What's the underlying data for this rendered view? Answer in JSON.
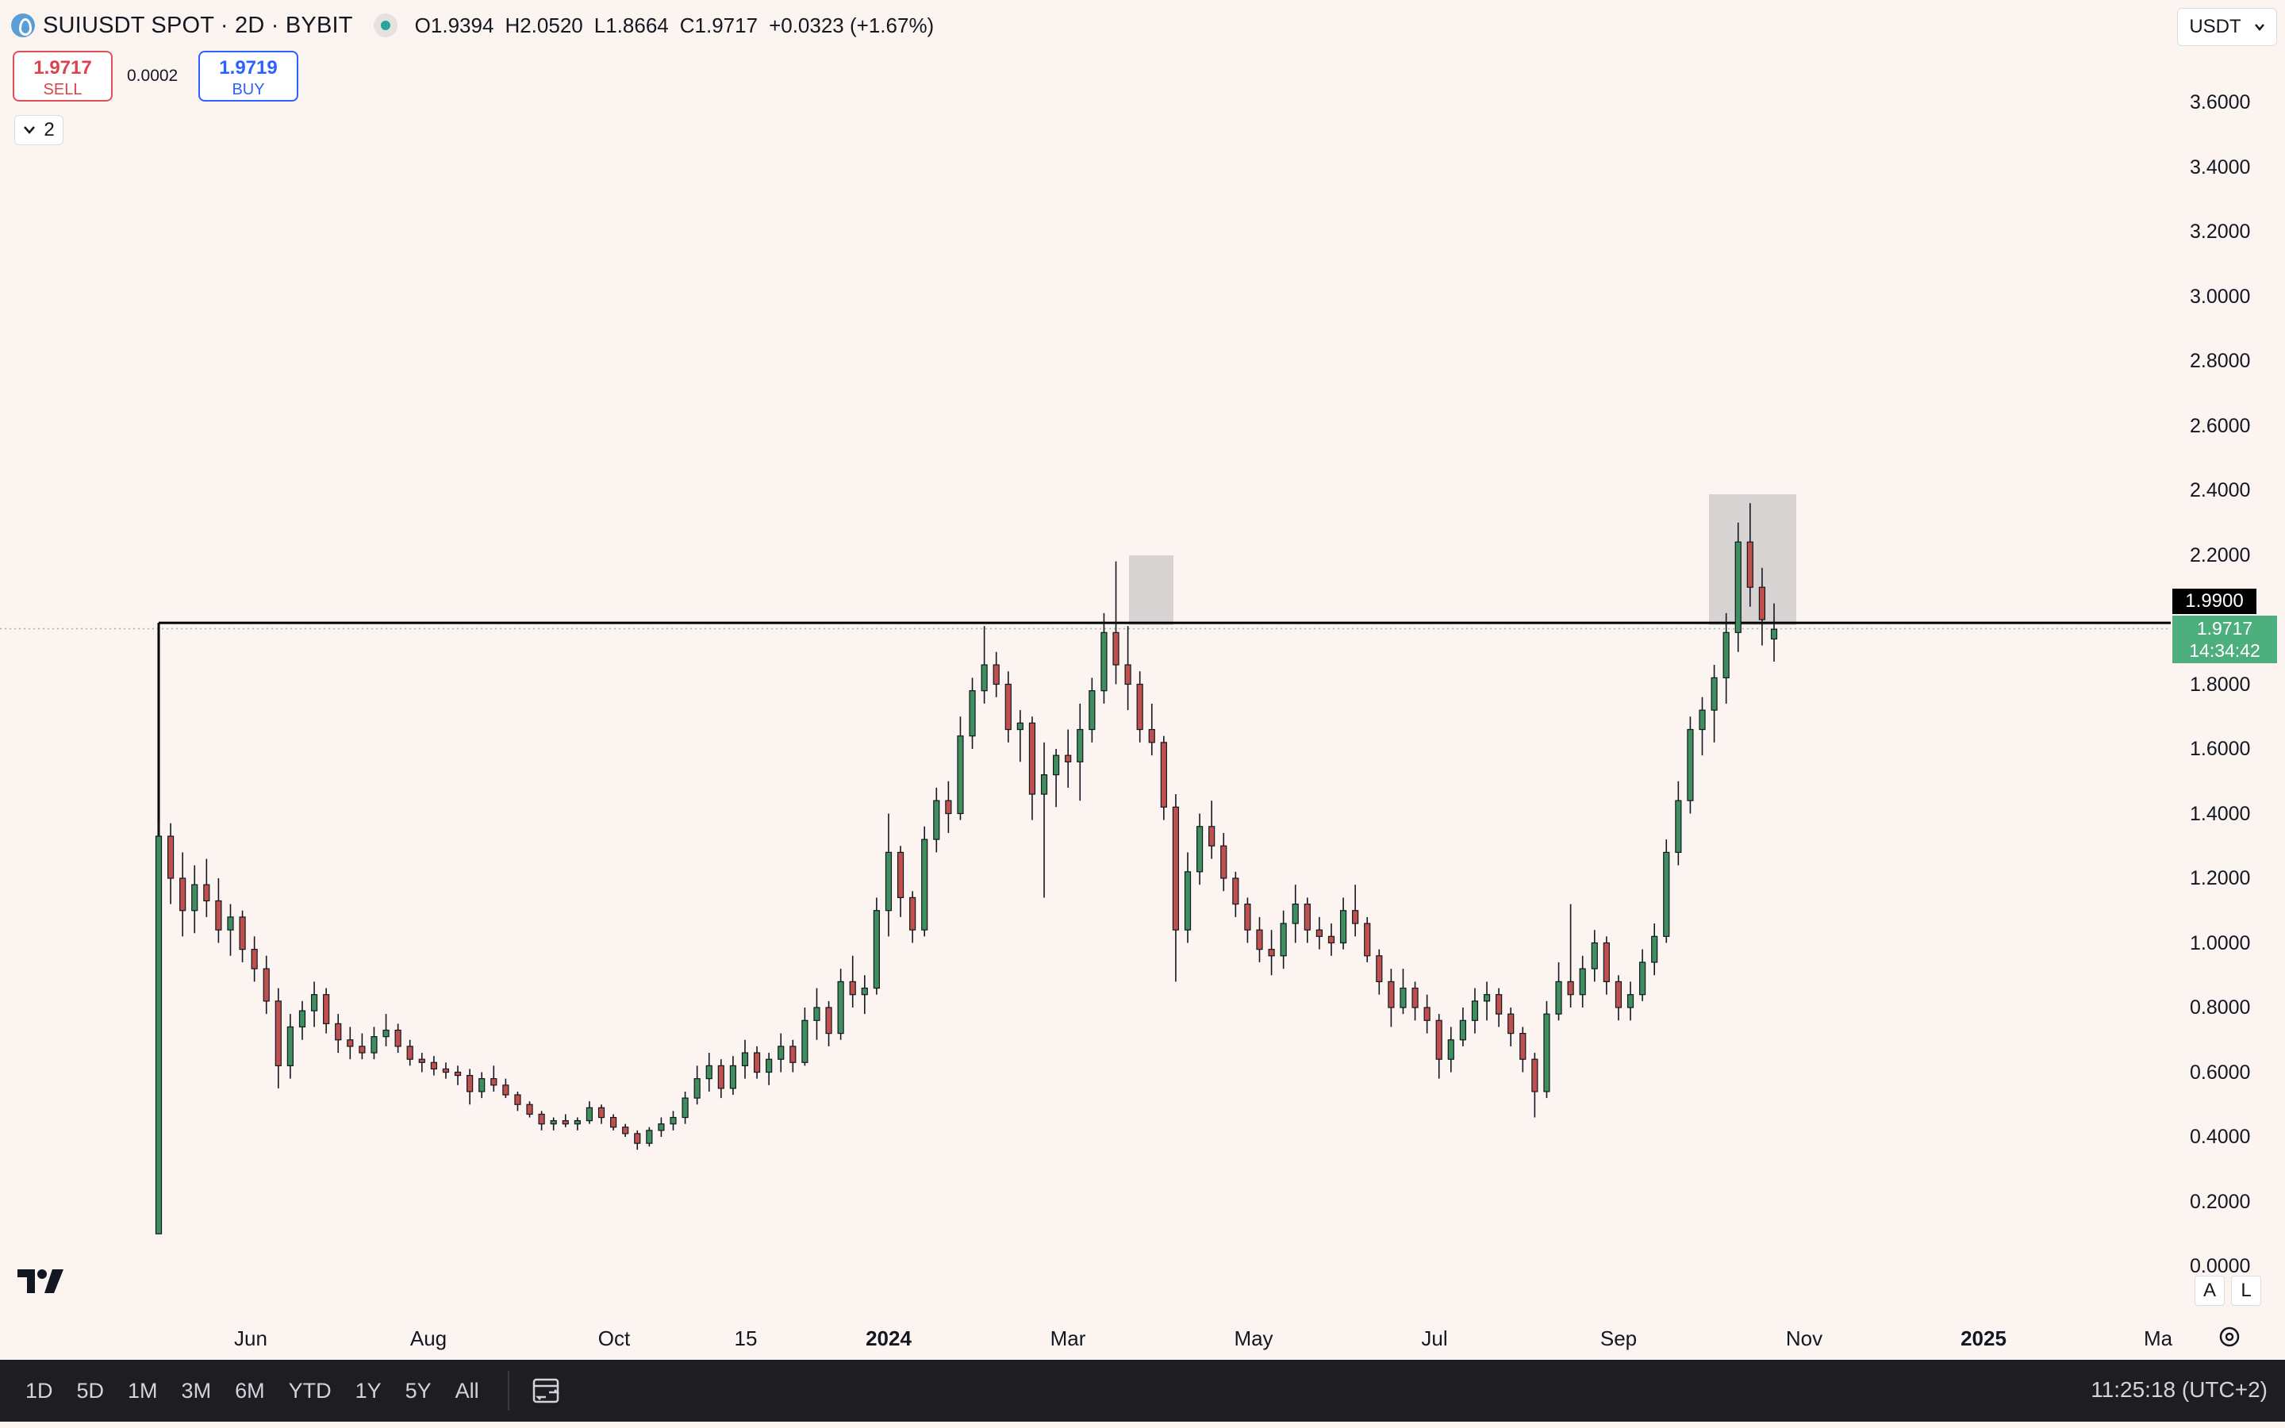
{
  "header": {
    "symbol": "SUIUSDT SPOT · 2D · BYBIT",
    "ohlc": {
      "open_label": "O",
      "open": "1.9394",
      "high_label": "H",
      "high": "2.0520",
      "low_label": "L",
      "low": "1.8664",
      "close_label": "C",
      "close": "1.9717",
      "change": "+0.0323 (+1.67%)"
    }
  },
  "trade": {
    "sell_price": "1.9717",
    "sell_label": "SELL",
    "spread": "0.0002",
    "buy_price": "1.9719",
    "buy_label": "BUY"
  },
  "indicators_toggle": "2",
  "currency": "USDT",
  "price_axis": {
    "ticks": [
      "3.6000",
      "3.4000",
      "3.2000",
      "3.0000",
      "2.8000",
      "2.6000",
      "2.4000",
      "2.2000",
      "1.8000",
      "1.6000",
      "1.4000",
      "1.2000",
      "1.0000",
      "0.8000",
      "0.6000",
      "0.4000",
      "0.2000",
      "0.0000"
    ],
    "level_tag": "1.9900",
    "last_price": "1.9717",
    "countdown": "14:34:42"
  },
  "time_axis": {
    "labels": [
      {
        "text": "Jun",
        "bold": false
      },
      {
        "text": "Aug",
        "bold": false
      },
      {
        "text": "Oct",
        "bold": false
      },
      {
        "text": "15",
        "bold": false
      },
      {
        "text": "2024",
        "bold": true
      },
      {
        "text": "Mar",
        "bold": false
      },
      {
        "text": "May",
        "bold": false
      },
      {
        "text": "Jul",
        "bold": false
      },
      {
        "text": "Sep",
        "bold": false
      },
      {
        "text": "Nov",
        "bold": false
      },
      {
        "text": "2025",
        "bold": true
      },
      {
        "text": "Ma",
        "bold": false
      }
    ]
  },
  "scale_buttons": {
    "auto": "A",
    "log": "L"
  },
  "bottom_bar": {
    "ranges": [
      "1D",
      "5D",
      "1M",
      "3M",
      "6M",
      "YTD",
      "1Y",
      "5Y",
      "All"
    ],
    "clock": "11:25:18 (UTC+2)"
  },
  "colors": {
    "background": "#fcf4f1",
    "up": "#26a69a",
    "up_body": "#3e8e5e",
    "down": "#c0504d",
    "level_line": "#000000",
    "highlight_box": "#b8b8b8",
    "last_tag": "#4caf7d"
  },
  "chart_data": {
    "type": "candlestick",
    "ylim": [
      0,
      3.7
    ],
    "resistance_level": 1.99,
    "candles": [
      {
        "date": "2023-05-03",
        "o": 0.1,
        "h": 1.38,
        "l": 0.1,
        "c": 1.33
      },
      {
        "date": "2023-05-07",
        "o": 1.33,
        "h": 1.37,
        "l": 1.12,
        "c": 1.2
      },
      {
        "date": "2023-05-11",
        "o": 1.2,
        "h": 1.28,
        "l": 1.02,
        "c": 1.1
      },
      {
        "date": "2023-05-15",
        "o": 1.1,
        "h": 1.24,
        "l": 1.03,
        "c": 1.18
      },
      {
        "date": "2023-05-19",
        "o": 1.18,
        "h": 1.26,
        "l": 1.08,
        "c": 1.13
      },
      {
        "date": "2023-05-23",
        "o": 1.13,
        "h": 1.2,
        "l": 1.0,
        "c": 1.04
      },
      {
        "date": "2023-05-27",
        "o": 1.04,
        "h": 1.12,
        "l": 0.96,
        "c": 1.08
      },
      {
        "date": "2023-05-31",
        "o": 1.08,
        "h": 1.1,
        "l": 0.94,
        "c": 0.98
      },
      {
        "date": "2023-06-04",
        "o": 0.98,
        "h": 1.02,
        "l": 0.88,
        "c": 0.92
      },
      {
        "date": "2023-06-08",
        "o": 0.92,
        "h": 0.96,
        "l": 0.78,
        "c": 0.82
      },
      {
        "date": "2023-06-12",
        "o": 0.82,
        "h": 0.86,
        "l": 0.55,
        "c": 0.62
      },
      {
        "date": "2023-06-16",
        "o": 0.62,
        "h": 0.78,
        "l": 0.58,
        "c": 0.74
      },
      {
        "date": "2023-06-20",
        "o": 0.74,
        "h": 0.82,
        "l": 0.7,
        "c": 0.79
      },
      {
        "date": "2023-06-24",
        "o": 0.79,
        "h": 0.88,
        "l": 0.74,
        "c": 0.84
      },
      {
        "date": "2023-06-28",
        "o": 0.84,
        "h": 0.86,
        "l": 0.72,
        "c": 0.75
      },
      {
        "date": "2023-07-02",
        "o": 0.75,
        "h": 0.78,
        "l": 0.66,
        "c": 0.7
      },
      {
        "date": "2023-07-06",
        "o": 0.7,
        "h": 0.74,
        "l": 0.64,
        "c": 0.68
      },
      {
        "date": "2023-07-10",
        "o": 0.68,
        "h": 0.72,
        "l": 0.64,
        "c": 0.66
      },
      {
        "date": "2023-07-14",
        "o": 0.66,
        "h": 0.74,
        "l": 0.64,
        "c": 0.71
      },
      {
        "date": "2023-07-18",
        "o": 0.71,
        "h": 0.78,
        "l": 0.68,
        "c": 0.73
      },
      {
        "date": "2023-07-22",
        "o": 0.73,
        "h": 0.75,
        "l": 0.66,
        "c": 0.68
      },
      {
        "date": "2023-07-26",
        "o": 0.68,
        "h": 0.7,
        "l": 0.62,
        "c": 0.64
      },
      {
        "date": "2023-07-30",
        "o": 0.64,
        "h": 0.66,
        "l": 0.6,
        "c": 0.63
      },
      {
        "date": "2023-08-03",
        "o": 0.63,
        "h": 0.65,
        "l": 0.59,
        "c": 0.61
      },
      {
        "date": "2023-08-07",
        "o": 0.61,
        "h": 0.63,
        "l": 0.58,
        "c": 0.6
      },
      {
        "date": "2023-08-11",
        "o": 0.6,
        "h": 0.62,
        "l": 0.56,
        "c": 0.59
      },
      {
        "date": "2023-08-15",
        "o": 0.59,
        "h": 0.61,
        "l": 0.5,
        "c": 0.54
      },
      {
        "date": "2023-08-19",
        "o": 0.54,
        "h": 0.6,
        "l": 0.52,
        "c": 0.58
      },
      {
        "date": "2023-08-23",
        "o": 0.58,
        "h": 0.62,
        "l": 0.54,
        "c": 0.56
      },
      {
        "date": "2023-08-27",
        "o": 0.56,
        "h": 0.58,
        "l": 0.52,
        "c": 0.53
      },
      {
        "date": "2023-08-31",
        "o": 0.53,
        "h": 0.54,
        "l": 0.48,
        "c": 0.5
      },
      {
        "date": "2023-09-04",
        "o": 0.5,
        "h": 0.51,
        "l": 0.46,
        "c": 0.47
      },
      {
        "date": "2023-09-08",
        "o": 0.47,
        "h": 0.48,
        "l": 0.42,
        "c": 0.44
      },
      {
        "date": "2023-09-12",
        "o": 0.44,
        "h": 0.46,
        "l": 0.42,
        "c": 0.45
      },
      {
        "date": "2023-09-16",
        "o": 0.45,
        "h": 0.47,
        "l": 0.43,
        "c": 0.44
      },
      {
        "date": "2023-09-20",
        "o": 0.44,
        "h": 0.46,
        "l": 0.42,
        "c": 0.45
      },
      {
        "date": "2023-09-24",
        "o": 0.45,
        "h": 0.51,
        "l": 0.44,
        "c": 0.49
      },
      {
        "date": "2023-09-28",
        "o": 0.49,
        "h": 0.5,
        "l": 0.44,
        "c": 0.46
      },
      {
        "date": "2023-10-02",
        "o": 0.46,
        "h": 0.47,
        "l": 0.42,
        "c": 0.43
      },
      {
        "date": "2023-10-06",
        "o": 0.43,
        "h": 0.44,
        "l": 0.4,
        "c": 0.41
      },
      {
        "date": "2023-10-10",
        "o": 0.41,
        "h": 0.42,
        "l": 0.36,
        "c": 0.38
      },
      {
        "date": "2023-10-14",
        "o": 0.38,
        "h": 0.43,
        "l": 0.37,
        "c": 0.42
      },
      {
        "date": "2023-10-18",
        "o": 0.42,
        "h": 0.46,
        "l": 0.4,
        "c": 0.44
      },
      {
        "date": "2023-10-22",
        "o": 0.44,
        "h": 0.48,
        "l": 0.42,
        "c": 0.46
      },
      {
        "date": "2023-10-26",
        "o": 0.46,
        "h": 0.54,
        "l": 0.44,
        "c": 0.52
      },
      {
        "date": "2023-10-30",
        "o": 0.52,
        "h": 0.62,
        "l": 0.5,
        "c": 0.58
      },
      {
        "date": "2023-11-03",
        "o": 0.58,
        "h": 0.66,
        "l": 0.54,
        "c": 0.62
      },
      {
        "date": "2023-11-07",
        "o": 0.62,
        "h": 0.64,
        "l": 0.52,
        "c": 0.55
      },
      {
        "date": "2023-11-11",
        "o": 0.55,
        "h": 0.65,
        "l": 0.53,
        "c": 0.62
      },
      {
        "date": "2023-11-15",
        "o": 0.62,
        "h": 0.7,
        "l": 0.58,
        "c": 0.66
      },
      {
        "date": "2023-11-19",
        "o": 0.66,
        "h": 0.68,
        "l": 0.58,
        "c": 0.6
      },
      {
        "date": "2023-11-23",
        "o": 0.6,
        "h": 0.66,
        "l": 0.56,
        "c": 0.64
      },
      {
        "date": "2023-11-27",
        "o": 0.64,
        "h": 0.72,
        "l": 0.6,
        "c": 0.68
      },
      {
        "date": "2023-12-01",
        "o": 0.68,
        "h": 0.7,
        "l": 0.6,
        "c": 0.63
      },
      {
        "date": "2023-12-05",
        "o": 0.63,
        "h": 0.8,
        "l": 0.62,
        "c": 0.76
      },
      {
        "date": "2023-12-09",
        "o": 0.76,
        "h": 0.86,
        "l": 0.7,
        "c": 0.8
      },
      {
        "date": "2023-12-13",
        "o": 0.8,
        "h": 0.82,
        "l": 0.68,
        "c": 0.72
      },
      {
        "date": "2023-12-17",
        "o": 0.72,
        "h": 0.92,
        "l": 0.7,
        "c": 0.88
      },
      {
        "date": "2023-12-21",
        "o": 0.88,
        "h": 0.96,
        "l": 0.8,
        "c": 0.84
      },
      {
        "date": "2023-12-25",
        "o": 0.84,
        "h": 0.9,
        "l": 0.78,
        "c": 0.86
      },
      {
        "date": "2023-12-29",
        "o": 0.86,
        "h": 1.14,
        "l": 0.84,
        "c": 1.1
      },
      {
        "date": "2024-01-02",
        "o": 1.1,
        "h": 1.4,
        "l": 1.02,
        "c": 1.28
      },
      {
        "date": "2024-01-06",
        "o": 1.28,
        "h": 1.3,
        "l": 1.08,
        "c": 1.14
      },
      {
        "date": "2024-01-10",
        "o": 1.14,
        "h": 1.16,
        "l": 1.0,
        "c": 1.04
      },
      {
        "date": "2024-01-14",
        "o": 1.04,
        "h": 1.36,
        "l": 1.02,
        "c": 1.32
      },
      {
        "date": "2024-01-18",
        "o": 1.32,
        "h": 1.48,
        "l": 1.28,
        "c": 1.44
      },
      {
        "date": "2024-01-22",
        "o": 1.44,
        "h": 1.5,
        "l": 1.34,
        "c": 1.4
      },
      {
        "date": "2024-01-26",
        "o": 1.4,
        "h": 1.7,
        "l": 1.38,
        "c": 1.64
      },
      {
        "date": "2024-01-30",
        "o": 1.64,
        "h": 1.82,
        "l": 1.6,
        "c": 1.78
      },
      {
        "date": "2024-02-03",
        "o": 1.78,
        "h": 1.98,
        "l": 1.74,
        "c": 1.86
      },
      {
        "date": "2024-02-07",
        "o": 1.86,
        "h": 1.9,
        "l": 1.76,
        "c": 1.8
      },
      {
        "date": "2024-02-11",
        "o": 1.8,
        "h": 1.84,
        "l": 1.62,
        "c": 1.66
      },
      {
        "date": "2024-02-15",
        "o": 1.66,
        "h": 1.72,
        "l": 1.56,
        "c": 1.68
      },
      {
        "date": "2024-02-19",
        "o": 1.68,
        "h": 1.7,
        "l": 1.38,
        "c": 1.46
      },
      {
        "date": "2024-02-23",
        "o": 1.46,
        "h": 1.62,
        "l": 1.14,
        "c": 1.52
      },
      {
        "date": "2024-02-27",
        "o": 1.52,
        "h": 1.6,
        "l": 1.42,
        "c": 1.58
      },
      {
        "date": "2024-03-02",
        "o": 1.58,
        "h": 1.66,
        "l": 1.48,
        "c": 1.56
      },
      {
        "date": "2024-03-06",
        "o": 1.56,
        "h": 1.74,
        "l": 1.44,
        "c": 1.66
      },
      {
        "date": "2024-03-10",
        "o": 1.66,
        "h": 1.82,
        "l": 1.62,
        "c": 1.78
      },
      {
        "date": "2024-03-14",
        "o": 1.78,
        "h": 2.02,
        "l": 1.74,
        "c": 1.96
      },
      {
        "date": "2024-03-18",
        "o": 1.96,
        "h": 2.18,
        "l": 1.8,
        "c": 1.86
      },
      {
        "date": "2024-03-22",
        "o": 1.86,
        "h": 1.98,
        "l": 1.72,
        "c": 1.8
      },
      {
        "date": "2024-03-26",
        "o": 1.8,
        "h": 1.84,
        "l": 1.62,
        "c": 1.66
      },
      {
        "date": "2024-03-30",
        "o": 1.66,
        "h": 1.74,
        "l": 1.58,
        "c": 1.62
      },
      {
        "date": "2024-04-03",
        "o": 1.62,
        "h": 1.64,
        "l": 1.38,
        "c": 1.42
      },
      {
        "date": "2024-04-07",
        "o": 1.42,
        "h": 1.46,
        "l": 0.88,
        "c": 1.04
      },
      {
        "date": "2024-04-11",
        "o": 1.04,
        "h": 1.28,
        "l": 1.0,
        "c": 1.22
      },
      {
        "date": "2024-04-15",
        "o": 1.22,
        "h": 1.4,
        "l": 1.18,
        "c": 1.36
      },
      {
        "date": "2024-04-19",
        "o": 1.36,
        "h": 1.44,
        "l": 1.26,
        "c": 1.3
      },
      {
        "date": "2024-04-23",
        "o": 1.3,
        "h": 1.34,
        "l": 1.16,
        "c": 1.2
      },
      {
        "date": "2024-04-27",
        "o": 1.2,
        "h": 1.22,
        "l": 1.08,
        "c": 1.12
      },
      {
        "date": "2024-05-01",
        "o": 1.12,
        "h": 1.14,
        "l": 1.0,
        "c": 1.04
      },
      {
        "date": "2024-05-05",
        "o": 1.04,
        "h": 1.08,
        "l": 0.94,
        "c": 0.98
      },
      {
        "date": "2024-05-09",
        "o": 0.98,
        "h": 1.04,
        "l": 0.9,
        "c": 0.96
      },
      {
        "date": "2024-05-13",
        "o": 0.96,
        "h": 1.1,
        "l": 0.92,
        "c": 1.06
      },
      {
        "date": "2024-05-17",
        "o": 1.06,
        "h": 1.18,
        "l": 1.0,
        "c": 1.12
      },
      {
        "date": "2024-05-21",
        "o": 1.12,
        "h": 1.14,
        "l": 1.0,
        "c": 1.04
      },
      {
        "date": "2024-05-25",
        "o": 1.04,
        "h": 1.08,
        "l": 0.98,
        "c": 1.02
      },
      {
        "date": "2024-05-29",
        "o": 1.02,
        "h": 1.06,
        "l": 0.96,
        "c": 1.0
      },
      {
        "date": "2024-06-02",
        "o": 1.0,
        "h": 1.14,
        "l": 0.98,
        "c": 1.1
      },
      {
        "date": "2024-06-06",
        "o": 1.1,
        "h": 1.18,
        "l": 1.02,
        "c": 1.06
      },
      {
        "date": "2024-06-10",
        "o": 1.06,
        "h": 1.08,
        "l": 0.94,
        "c": 0.96
      },
      {
        "date": "2024-06-14",
        "o": 0.96,
        "h": 0.98,
        "l": 0.84,
        "c": 0.88
      },
      {
        "date": "2024-06-18",
        "o": 0.88,
        "h": 0.92,
        "l": 0.74,
        "c": 0.8
      },
      {
        "date": "2024-06-22",
        "o": 0.8,
        "h": 0.92,
        "l": 0.78,
        "c": 0.86
      },
      {
        "date": "2024-06-26",
        "o": 0.86,
        "h": 0.88,
        "l": 0.76,
        "c": 0.8
      },
      {
        "date": "2024-06-30",
        "o": 0.8,
        "h": 0.84,
        "l": 0.72,
        "c": 0.76
      },
      {
        "date": "2024-07-04",
        "o": 0.76,
        "h": 0.78,
        "l": 0.58,
        "c": 0.64
      },
      {
        "date": "2024-07-08",
        "o": 0.64,
        "h": 0.74,
        "l": 0.6,
        "c": 0.7
      },
      {
        "date": "2024-07-12",
        "o": 0.7,
        "h": 0.8,
        "l": 0.68,
        "c": 0.76
      },
      {
        "date": "2024-07-16",
        "o": 0.76,
        "h": 0.86,
        "l": 0.72,
        "c": 0.82
      },
      {
        "date": "2024-07-20",
        "o": 0.82,
        "h": 0.88,
        "l": 0.76,
        "c": 0.84
      },
      {
        "date": "2024-07-24",
        "o": 0.84,
        "h": 0.86,
        "l": 0.74,
        "c": 0.78
      },
      {
        "date": "2024-07-28",
        "o": 0.78,
        "h": 0.8,
        "l": 0.68,
        "c": 0.72
      },
      {
        "date": "2024-08-01",
        "o": 0.72,
        "h": 0.74,
        "l": 0.6,
        "c": 0.64
      },
      {
        "date": "2024-08-05",
        "o": 0.64,
        "h": 0.66,
        "l": 0.46,
        "c": 0.54
      },
      {
        "date": "2024-08-09",
        "o": 0.54,
        "h": 0.82,
        "l": 0.52,
        "c": 0.78
      },
      {
        "date": "2024-08-13",
        "o": 0.78,
        "h": 0.94,
        "l": 0.76,
        "c": 0.88
      },
      {
        "date": "2024-08-17",
        "o": 0.88,
        "h": 1.12,
        "l": 0.8,
        "c": 0.84
      },
      {
        "date": "2024-08-21",
        "o": 0.84,
        "h": 0.96,
        "l": 0.8,
        "c": 0.92
      },
      {
        "date": "2024-08-25",
        "o": 0.92,
        "h": 1.04,
        "l": 0.88,
        "c": 1.0
      },
      {
        "date": "2024-08-29",
        "o": 1.0,
        "h": 1.02,
        "l": 0.84,
        "c": 0.88
      },
      {
        "date": "2024-09-02",
        "o": 0.88,
        "h": 0.9,
        "l": 0.76,
        "c": 0.8
      },
      {
        "date": "2024-09-06",
        "o": 0.8,
        "h": 0.88,
        "l": 0.76,
        "c": 0.84
      },
      {
        "date": "2024-09-10",
        "o": 0.84,
        "h": 0.98,
        "l": 0.82,
        "c": 0.94
      },
      {
        "date": "2024-09-14",
        "o": 0.94,
        "h": 1.06,
        "l": 0.9,
        "c": 1.02
      },
      {
        "date": "2024-09-18",
        "o": 1.02,
        "h": 1.32,
        "l": 1.0,
        "c": 1.28
      },
      {
        "date": "2024-09-22",
        "o": 1.28,
        "h": 1.5,
        "l": 1.24,
        "c": 1.44
      },
      {
        "date": "2024-09-26",
        "o": 1.44,
        "h": 1.7,
        "l": 1.4,
        "c": 1.66
      },
      {
        "date": "2024-09-30",
        "o": 1.66,
        "h": 1.76,
        "l": 1.58,
        "c": 1.72
      },
      {
        "date": "2024-10-04",
        "o": 1.72,
        "h": 1.86,
        "l": 1.62,
        "c": 1.82
      },
      {
        "date": "2024-10-08",
        "o": 1.82,
        "h": 2.02,
        "l": 1.74,
        "c": 1.96
      },
      {
        "date": "2024-10-12",
        "o": 1.96,
        "h": 2.3,
        "l": 1.9,
        "c": 2.24
      },
      {
        "date": "2024-10-16",
        "o": 2.24,
        "h": 2.36,
        "l": 2.04,
        "c": 2.1
      },
      {
        "date": "2024-10-20",
        "o": 2.1,
        "h": 2.16,
        "l": 1.92,
        "c": 2.0
      },
      {
        "date": "2024-10-24",
        "o": 1.94,
        "h": 2.05,
        "l": 1.87,
        "c": 1.97
      }
    ]
  }
}
